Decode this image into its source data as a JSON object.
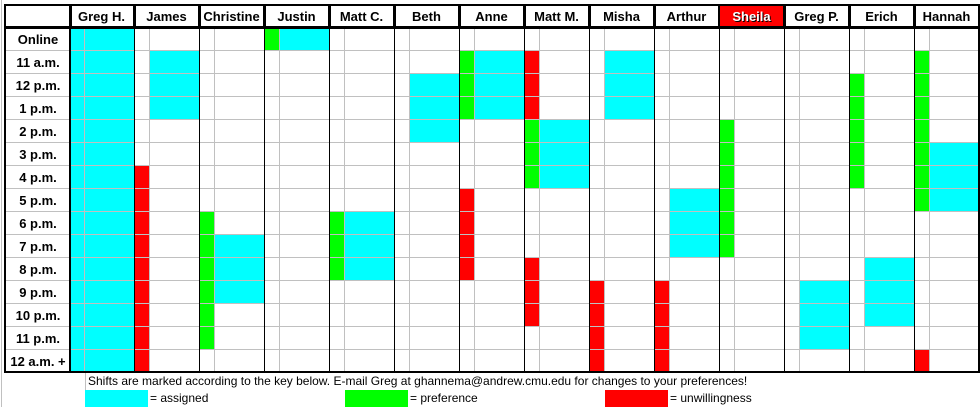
{
  "colors": {
    "a": "#00ffff",
    "p": "#00ff00",
    "u": "#ff0000",
    "highlight": "#ff0000"
  },
  "rows": [
    "Online",
    "11 a.m.",
    "12 p.m.",
    "1 p.m.",
    "2 p.m.",
    "3 p.m.",
    "4 p.m.",
    "5 p.m.",
    "6 p.m.",
    "7 p.m.",
    "8 p.m.",
    "9 p.m.",
    "10 p.m.",
    "11 p.m.",
    "12 a.m. +"
  ],
  "people": [
    {
      "name": "Greg H.",
      "narrow": "aaaaaaaaaaaaaaa",
      "wide": "aaaaaaaaaaaaaaa"
    },
    {
      "name": "James",
      "narrow": "------uuuuuuuuu",
      "wide": "-aaa-----------"
    },
    {
      "name": "Christine",
      "narrow": "--------pppppp-",
      "wide": "---------aaa---"
    },
    {
      "name": "Justin",
      "narrow": "p--------------",
      "wide": "a--------------"
    },
    {
      "name": "Matt C.",
      "narrow": "--------ppp----",
      "wide": "--------aaa----"
    },
    {
      "name": "Beth",
      "narrow": "---------------",
      "wide": "--aaa----------"
    },
    {
      "name": "Anne",
      "narrow": "-ppp---uuuu----",
      "wide": "-aaa-----------"
    },
    {
      "name": "Matt M.",
      "narrow": "-uuuppp---uuu--",
      "wide": "----aaa--------"
    },
    {
      "name": "Misha",
      "narrow": "-----------uuuu",
      "wide": "-aaa-----------"
    },
    {
      "name": "Arthur",
      "narrow": "-----------uuuu",
      "wide": "-------aaa-----"
    },
    {
      "name": "Sheila",
      "narrow": "----pppppp-----",
      "wide": "---------------",
      "highlight": true
    },
    {
      "name": "Greg P.",
      "narrow": "---------------",
      "wide": "-----------aaa-"
    },
    {
      "name": "Erich",
      "narrow": "--ppppp--------",
      "wide": "----------aaa--"
    },
    {
      "name": "Hannah",
      "narrow": "-ppppppp------u",
      "wide": "-----aaa-------"
    }
  ],
  "footer": {
    "note": "Shifts are marked according to the key below.  E-mail Greg at ghannema@andrew.cmu.edu for changes to your preferences!",
    "legend": [
      {
        "key": "a",
        "label": "= assigned"
      },
      {
        "key": "p",
        "label": "= preference"
      },
      {
        "key": "u",
        "label": "= unwillingness"
      }
    ]
  }
}
